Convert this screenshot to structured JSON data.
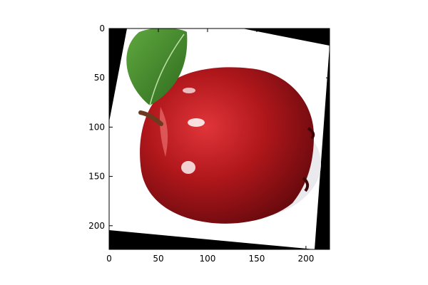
{
  "chart_data": {
    "type": "image",
    "title": "",
    "xlabel": "",
    "ylabel": "",
    "xlim": [
      0,
      224
    ],
    "ylim": [
      224,
      0
    ],
    "x_ticks": [
      0,
      50,
      100,
      150,
      200
    ],
    "y_ticks": [
      0,
      50,
      100,
      150,
      200
    ],
    "grid": false,
    "legend": "none",
    "image": {
      "subject": "red apple with green leaf and stem",
      "rotation_deg": -10,
      "fill_color": "#000000",
      "background_color": "#ffffff"
    }
  },
  "colors": {
    "apple_red": "#b0171b",
    "apple_dark": "#6e0a0e",
    "leaf_green": "#3f8a2a",
    "stem_brown": "#6b3a1f",
    "axis": "#000000"
  }
}
